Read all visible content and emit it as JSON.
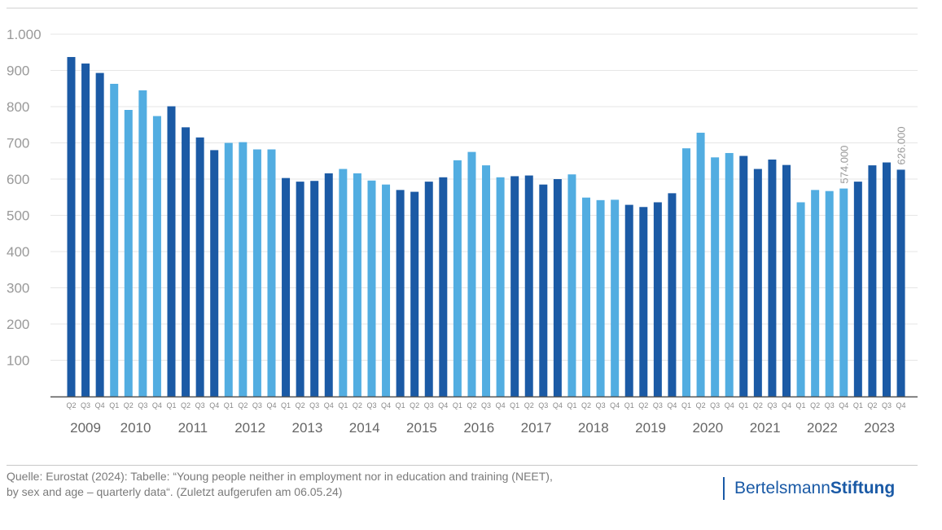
{
  "chart_data": {
    "type": "bar",
    "title": "",
    "xlabel": "",
    "ylabel": "",
    "ylim": [
      0,
      1000
    ],
    "yticks": [
      100,
      200,
      300,
      400,
      500,
      600,
      700,
      800,
      900,
      1000
    ],
    "ytick_labels": [
      "100",
      "200",
      "300",
      "400",
      "500",
      "600",
      "700",
      "800",
      "900",
      "1.000"
    ],
    "grid": true,
    "colors": {
      "dark": "#1b5aa5",
      "light": "#52ade1",
      "axis": "#555555",
      "grid": "#e6e6e6",
      "label": "#999999"
    },
    "years": [
      {
        "label": "2009",
        "quarters": [
          "Q2",
          "Q3",
          "Q4"
        ],
        "values": [
          937,
          919,
          893
        ],
        "shade": "dark"
      },
      {
        "label": "2010",
        "quarters": [
          "Q1",
          "Q2",
          "Q3",
          "Q4"
        ],
        "values": [
          863,
          791,
          845,
          774
        ],
        "shade": "light"
      },
      {
        "label": "2011",
        "quarters": [
          "Q1",
          "Q2",
          "Q3",
          "Q4"
        ],
        "values": [
          801,
          743,
          715,
          680
        ],
        "shade": "dark"
      },
      {
        "label": "2012",
        "quarters": [
          "Q1",
          "Q2",
          "Q3",
          "Q4"
        ],
        "values": [
          700,
          702,
          682,
          682
        ],
        "shade": "light"
      },
      {
        "label": "2013",
        "quarters": [
          "Q1",
          "Q2",
          "Q3",
          "Q4"
        ],
        "values": [
          603,
          593,
          595,
          616
        ],
        "shade": "dark"
      },
      {
        "label": "2014",
        "quarters": [
          "Q1",
          "Q2",
          "Q3",
          "Q4"
        ],
        "values": [
          628,
          616,
          596,
          585
        ],
        "shade": "light"
      },
      {
        "label": "2015",
        "quarters": [
          "Q1",
          "Q2",
          "Q3",
          "Q4"
        ],
        "values": [
          570,
          565,
          593,
          605
        ],
        "shade": "dark"
      },
      {
        "label": "2016",
        "quarters": [
          "Q1",
          "Q2",
          "Q3",
          "Q4"
        ],
        "values": [
          652,
          675,
          638,
          605
        ],
        "shade": "light"
      },
      {
        "label": "2017",
        "quarters": [
          "Q1",
          "Q2",
          "Q3",
          "Q4"
        ],
        "values": [
          608,
          610,
          585,
          600
        ],
        "shade": "dark"
      },
      {
        "label": "2018",
        "quarters": [
          "Q1",
          "Q2",
          "Q3",
          "Q4"
        ],
        "values": [
          613,
          549,
          542,
          543
        ],
        "shade": "light"
      },
      {
        "label": "2019",
        "quarters": [
          "Q1",
          "Q2",
          "Q3",
          "Q4"
        ],
        "values": [
          529,
          523,
          536,
          561
        ],
        "shade": "dark"
      },
      {
        "label": "2020",
        "quarters": [
          "Q1",
          "Q2",
          "Q3",
          "Q4"
        ],
        "values": [
          685,
          728,
          660,
          672
        ],
        "shade": "light"
      },
      {
        "label": "2021",
        "quarters": [
          "Q1",
          "Q2",
          "Q3",
          "Q4"
        ],
        "values": [
          664,
          628,
          654,
          639
        ],
        "shade": "dark"
      },
      {
        "label": "2022",
        "quarters": [
          "Q1",
          "Q2",
          "Q3",
          "Q4"
        ],
        "values": [
          536,
          570,
          567,
          574
        ],
        "shade": "light"
      },
      {
        "label": "2023",
        "quarters": [
          "Q1",
          "Q2",
          "Q3",
          "Q4"
        ],
        "values": [
          593,
          638,
          646,
          626
        ],
        "shade": "dark"
      }
    ],
    "annotations": [
      {
        "year": "2022",
        "quarter": "Q4",
        "text": "574.000"
      },
      {
        "year": "2023",
        "quarter": "Q4",
        "text": "626.000"
      }
    ]
  },
  "footer": {
    "source_line1": "Quelle: Eurostat (2024): Tabelle: “Young people neither in employment nor in education and training (NEET),",
    "source_line2": "by sex and age – quarterly data“. (Zuletzt aufgerufen am 06.05.24)",
    "logo_regular": "Bertelsmann",
    "logo_bold": "Stiftung"
  }
}
